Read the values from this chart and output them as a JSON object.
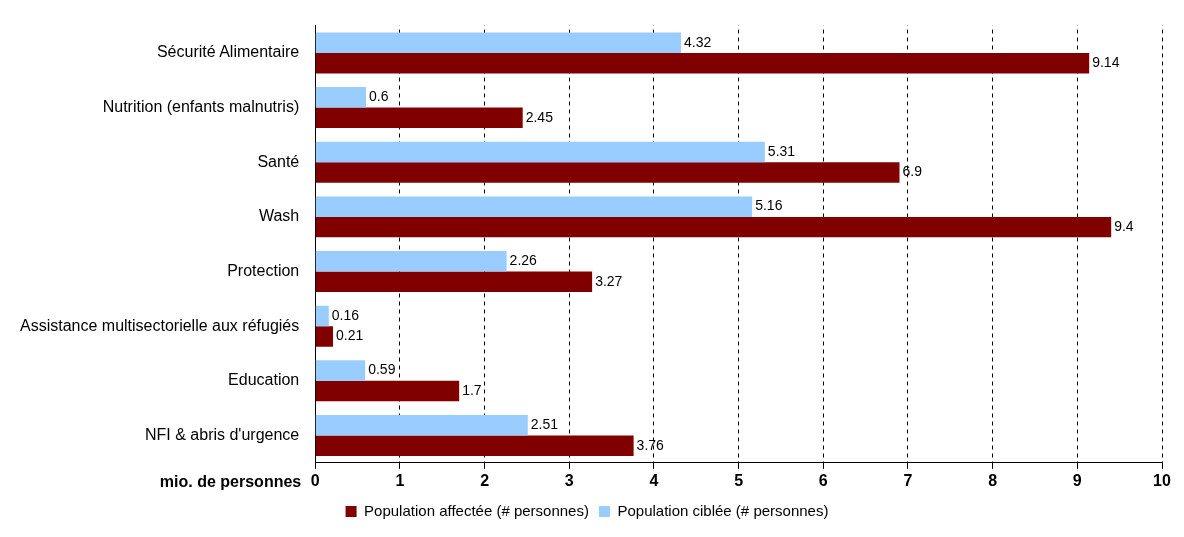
{
  "chart_data": {
    "type": "bar",
    "orientation": "horizontal",
    "xlabel": "mio. de personnes",
    "categories": [
      "Sécurité Alimentaire",
      "Nutrition (enfants malnutris)",
      "Santé",
      "Wash",
      "Protection",
      "Assistance multisectorielle aux réfugiés",
      "Education",
      "NFI & abris d'urgence"
    ],
    "series": [
      {
        "name": "Population ciblée (# personnes)",
        "color": "#99ccff",
        "values": [
          4.32,
          0.6,
          5.31,
          5.16,
          2.26,
          0.16,
          0.59,
          2.51
        ]
      },
      {
        "name": "Population affectée (# personnes)",
        "color": "#800000",
        "values": [
          9.14,
          2.45,
          6.9,
          9.4,
          3.27,
          0.21,
          1.7,
          3.76
        ]
      }
    ],
    "xlim": [
      0,
      10
    ],
    "xticks": [
      0,
      1,
      2,
      3,
      4,
      5,
      6,
      7,
      8,
      9,
      10
    ],
    "grid": "x",
    "legend": "bottom",
    "data_labels": true
  }
}
